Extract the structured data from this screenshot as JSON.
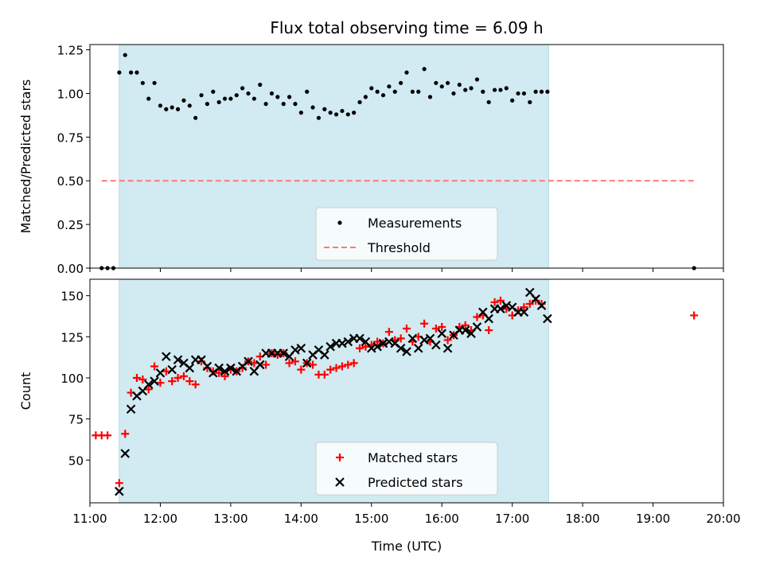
{
  "title": "Flux total observing time = 6.09 h",
  "xlabel": "Time (UTC)",
  "x_tick_labels": [
    "11:00",
    "12:00",
    "13:00",
    "14:00",
    "15:00",
    "16:00",
    "17:00",
    "18:00",
    "19:00",
    "20:00"
  ],
  "colors": {
    "span": "#add8e6",
    "measurements": "#000000",
    "threshold": "#ff7777",
    "matched": "#ff0000",
    "predicted": "#000000"
  },
  "chart_data": [
    {
      "type": "scatter",
      "ylabel": "Matched/Predicted stars",
      "xlim": [
        "11:00",
        "20:00"
      ],
      "ylim": [
        0,
        1.28
      ],
      "y_ticks": [
        "0.00",
        "0.25",
        "0.50",
        "0.75",
        "1.00",
        "1.25"
      ],
      "observing_span": [
        "11:25",
        "17:31"
      ],
      "threshold": {
        "name": "Threshold",
        "value": 0.5,
        "x_range": [
          "11:10",
          "19:35"
        ]
      },
      "legend": {
        "placement": "lower center",
        "entries": [
          "Measurements",
          "Threshold"
        ]
      },
      "series": [
        {
          "name": "Measurements",
          "points": [
            [
              "11:10",
              0.0
            ],
            [
              "11:15",
              0.0
            ],
            [
              "11:20",
              0.0
            ],
            [
              "11:25",
              1.12
            ],
            [
              "11:30",
              1.22
            ],
            [
              "11:35",
              1.12
            ],
            [
              "11:40",
              1.12
            ],
            [
              "11:45",
              1.06
            ],
            [
              "11:50",
              0.97
            ],
            [
              "11:55",
              1.06
            ],
            [
              "12:00",
              0.93
            ],
            [
              "12:05",
              0.91
            ],
            [
              "12:10",
              0.92
            ],
            [
              "12:15",
              0.91
            ],
            [
              "12:20",
              0.96
            ],
            [
              "12:25",
              0.93
            ],
            [
              "12:30",
              0.86
            ],
            [
              "12:35",
              0.99
            ],
            [
              "12:40",
              0.94
            ],
            [
              "12:45",
              1.01
            ],
            [
              "12:50",
              0.95
            ],
            [
              "12:55",
              0.97
            ],
            [
              "13:00",
              0.97
            ],
            [
              "13:05",
              0.99
            ],
            [
              "13:10",
              1.03
            ],
            [
              "13:15",
              1.0
            ],
            [
              "13:20",
              0.97
            ],
            [
              "13:25",
              1.05
            ],
            [
              "13:30",
              0.94
            ],
            [
              "13:35",
              1.0
            ],
            [
              "13:40",
              0.98
            ],
            [
              "13:45",
              0.94
            ],
            [
              "13:50",
              0.98
            ],
            [
              "13:55",
              0.94
            ],
            [
              "14:00",
              0.89
            ],
            [
              "14:05",
              1.01
            ],
            [
              "14:10",
              0.92
            ],
            [
              "14:15",
              0.86
            ],
            [
              "14:20",
              0.91
            ],
            [
              "14:25",
              0.89
            ],
            [
              "14:30",
              0.88
            ],
            [
              "14:35",
              0.9
            ],
            [
              "14:40",
              0.88
            ],
            [
              "14:45",
              0.89
            ],
            [
              "14:50",
              0.95
            ],
            [
              "14:55",
              0.98
            ],
            [
              "15:00",
              1.03
            ],
            [
              "15:05",
              1.01
            ],
            [
              "15:10",
              0.99
            ],
            [
              "15:15",
              1.04
            ],
            [
              "15:20",
              1.01
            ],
            [
              "15:25",
              1.06
            ],
            [
              "15:30",
              1.12
            ],
            [
              "15:35",
              1.01
            ],
            [
              "15:40",
              1.01
            ],
            [
              "15:45",
              1.14
            ],
            [
              "15:50",
              0.98
            ],
            [
              "15:55",
              1.06
            ],
            [
              "16:00",
              1.04
            ],
            [
              "16:05",
              1.06
            ],
            [
              "16:10",
              1.0
            ],
            [
              "16:15",
              1.05
            ],
            [
              "16:20",
              1.02
            ],
            [
              "16:25",
              1.03
            ],
            [
              "16:30",
              1.08
            ],
            [
              "16:35",
              1.01
            ],
            [
              "16:40",
              0.95
            ],
            [
              "16:45",
              1.02
            ],
            [
              "16:50",
              1.02
            ],
            [
              "16:55",
              1.03
            ],
            [
              "17:00",
              0.96
            ],
            [
              "17:05",
              1.0
            ],
            [
              "17:10",
              1.0
            ],
            [
              "17:15",
              0.95
            ],
            [
              "17:20",
              1.01
            ],
            [
              "17:25",
              1.01
            ],
            [
              "17:30",
              1.01
            ],
            [
              "19:35",
              0.0
            ]
          ]
        }
      ]
    },
    {
      "type": "scatter",
      "ylabel": "Count",
      "xlim": [
        "11:00",
        "20:00"
      ],
      "ylim": [
        24,
        160
      ],
      "y_ticks": [
        "50",
        "75",
        "100",
        "125",
        "150"
      ],
      "observing_span": [
        "11:25",
        "17:31"
      ],
      "legend": {
        "placement": "lower center",
        "entries": [
          "Matched stars",
          "Predicted stars"
        ]
      },
      "series": [
        {
          "name": "Matched stars",
          "marker": "+",
          "points": [
            [
              "11:05",
              65
            ],
            [
              "11:10",
              65
            ],
            [
              "11:15",
              65
            ],
            [
              "11:25",
              36
            ],
            [
              "11:30",
              66
            ],
            [
              "11:35",
              91
            ],
            [
              "11:40",
              100
            ],
            [
              "11:45",
              99
            ],
            [
              "11:50",
              93
            ],
            [
              "11:55",
              107
            ],
            [
              "12:00",
              97
            ],
            [
              "12:05",
              104
            ],
            [
              "12:10",
              98
            ],
            [
              "12:15",
              100
            ],
            [
              "12:20",
              101
            ],
            [
              "12:25",
              98
            ],
            [
              "12:30",
              96
            ],
            [
              "12:35",
              110
            ],
            [
              "12:40",
              106
            ],
            [
              "12:45",
              104
            ],
            [
              "12:50",
              103
            ],
            [
              "12:55",
              101
            ],
            [
              "13:00",
              105
            ],
            [
              "13:05",
              104
            ],
            [
              "13:10",
              106
            ],
            [
              "13:15",
              110
            ],
            [
              "13:20",
              109
            ],
            [
              "13:25",
              113
            ],
            [
              "13:30",
              108
            ],
            [
              "13:35",
              115
            ],
            [
              "13:40",
              114
            ],
            [
              "13:45",
              115
            ],
            [
              "13:50",
              109
            ],
            [
              "13:55",
              110
            ],
            [
              "14:00",
              105
            ],
            [
              "14:05",
              109
            ],
            [
              "14:10",
              108
            ],
            [
              "14:15",
              102
            ],
            [
              "14:20",
              102
            ],
            [
              "14:25",
              105
            ],
            [
              "14:30",
              106
            ],
            [
              "14:35",
              107
            ],
            [
              "14:40",
              108
            ],
            [
              "14:45",
              109
            ],
            [
              "14:50",
              118
            ],
            [
              "14:55",
              119
            ],
            [
              "15:00",
              120
            ],
            [
              "15:05",
              122
            ],
            [
              "15:10",
              121
            ],
            [
              "15:15",
              128
            ],
            [
              "15:20",
              123
            ],
            [
              "15:25",
              124
            ],
            [
              "15:30",
              130
            ],
            [
              "15:35",
              122
            ],
            [
              "15:40",
              125
            ],
            [
              "15:45",
              133
            ],
            [
              "15:50",
              122
            ],
            [
              "15:55",
              130
            ],
            [
              "16:00",
              131
            ],
            [
              "16:05",
              123
            ],
            [
              "16:10",
              126
            ],
            [
              "16:15",
              131
            ],
            [
              "16:20",
              132
            ],
            [
              "16:25",
              129
            ],
            [
              "16:30",
              137
            ],
            [
              "16:35",
              138
            ],
            [
              "16:40",
              129
            ],
            [
              "16:45",
              146
            ],
            [
              "16:50",
              147
            ],
            [
              "16:55",
              142
            ],
            [
              "17:00",
              138
            ],
            [
              "17:05",
              141
            ],
            [
              "17:10",
              143
            ],
            [
              "17:15",
              145
            ],
            [
              "17:20",
              147
            ],
            [
              "17:25",
              145
            ],
            [
              "19:35",
              138
            ]
          ]
        },
        {
          "name": "Predicted stars",
          "marker": "x",
          "points": [
            [
              "11:25",
              31
            ],
            [
              "11:30",
              54
            ],
            [
              "11:35",
              81
            ],
            [
              "11:40",
              89
            ],
            [
              "11:45",
              92
            ],
            [
              "11:50",
              96
            ],
            [
              "11:55",
              98
            ],
            [
              "12:00",
              103
            ],
            [
              "12:05",
              113
            ],
            [
              "12:10",
              105
            ],
            [
              "12:15",
              111
            ],
            [
              "12:20",
              109
            ],
            [
              "12:25",
              106
            ],
            [
              "12:30",
              111
            ],
            [
              "12:35",
              111
            ],
            [
              "12:40",
              107
            ],
            [
              "12:45",
              103
            ],
            [
              "12:50",
              106
            ],
            [
              "12:55",
              104
            ],
            [
              "13:00",
              106
            ],
            [
              "13:05",
              104
            ],
            [
              "13:10",
              107
            ],
            [
              "13:15",
              110
            ],
            [
              "13:20",
              104
            ],
            [
              "13:25",
              108
            ],
            [
              "13:30",
              115
            ],
            [
              "13:35",
              115
            ],
            [
              "13:40",
              115
            ],
            [
              "13:45",
              115
            ],
            [
              "13:50",
              113
            ],
            [
              "13:55",
              117
            ],
            [
              "14:00",
              118
            ],
            [
              "14:05",
              109
            ],
            [
              "14:10",
              114
            ],
            [
              "14:15",
              117
            ],
            [
              "14:20",
              114
            ],
            [
              "14:25",
              119
            ],
            [
              "14:30",
              121
            ],
            [
              "14:35",
              121
            ],
            [
              "14:40",
              122
            ],
            [
              "14:45",
              124
            ],
            [
              "14:50",
              124
            ],
            [
              "14:55",
              122
            ],
            [
              "15:00",
              118
            ],
            [
              "15:05",
              119
            ],
            [
              "15:10",
              121
            ],
            [
              "15:15",
              122
            ],
            [
              "15:20",
              121
            ],
            [
              "15:25",
              118
            ],
            [
              "15:30",
              116
            ],
            [
              "15:35",
              124
            ],
            [
              "15:40",
              118
            ],
            [
              "15:45",
              123
            ],
            [
              "15:50",
              124
            ],
            [
              "15:55",
              120
            ],
            [
              "16:00",
              127
            ],
            [
              "16:05",
              118
            ],
            [
              "16:10",
              126
            ],
            [
              "16:15",
              129
            ],
            [
              "16:20",
              129
            ],
            [
              "16:25",
              127
            ],
            [
              "16:30",
              131
            ],
            [
              "16:35",
              140
            ],
            [
              "16:40",
              136
            ],
            [
              "16:45",
              142
            ],
            [
              "16:50",
              142
            ],
            [
              "16:55",
              144
            ],
            [
              "17:00",
              143
            ],
            [
              "17:05",
              140
            ],
            [
              "17:10",
              140
            ],
            [
              "17:15",
              152
            ],
            [
              "17:20",
              148
            ],
            [
              "17:25",
              144
            ],
            [
              "17:30",
              136
            ]
          ]
        }
      ]
    }
  ]
}
